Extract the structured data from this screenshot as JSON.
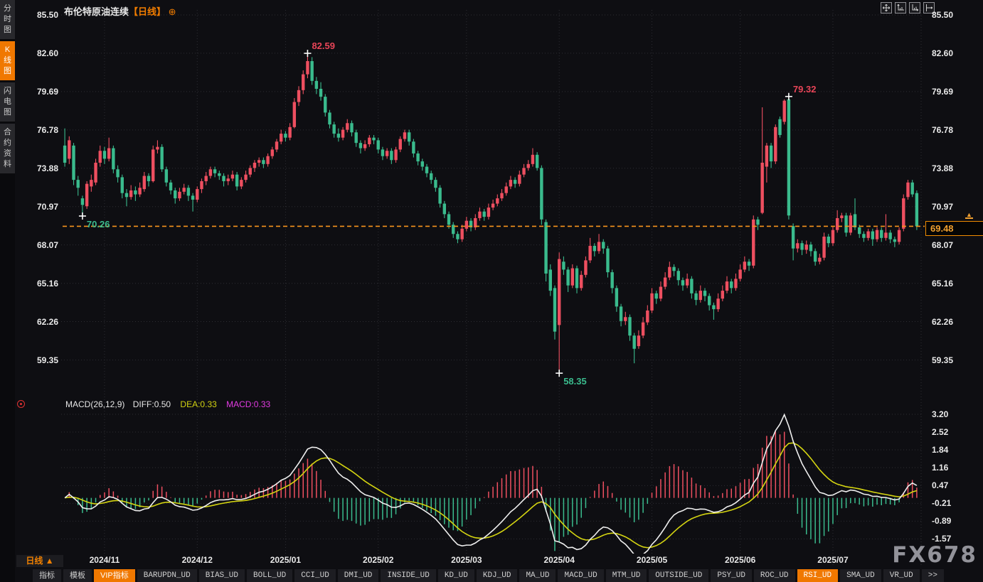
{
  "title": {
    "symbol": "布伦特原油连续",
    "period_tag": "【日线】",
    "plus": "⊕"
  },
  "topbar_icons": [
    "pan-tool-icon",
    "axis-scale-left-icon",
    "axis-scale-right-icon",
    "fit-right-icon"
  ],
  "sidebar": {
    "tabs": [
      {
        "label": "分时图",
        "active": false
      },
      {
        "label": "K线图",
        "active": true
      },
      {
        "label": "闪电图",
        "active": false
      },
      {
        "label": "合约资料",
        "active": false
      }
    ]
  },
  "main_chart": {
    "y_labels": [
      "85.50",
      "82.60",
      "79.69",
      "76.78",
      "73.88",
      "70.97",
      "68.07",
      "65.16",
      "62.26",
      "59.35"
    ],
    "last_price": "69.48",
    "annotations": [
      {
        "index": 55,
        "price": 82.59,
        "text": "82.59",
        "type": "high"
      },
      {
        "index": 4,
        "price": 70.26,
        "text": "70.26",
        "type": "low"
      },
      {
        "index": 164,
        "price": 79.32,
        "text": "79.32",
        "type": "high"
      },
      {
        "index": 112,
        "price": 58.35,
        "text": "58.35",
        "type": "low"
      }
    ]
  },
  "macd": {
    "header": {
      "name": "MACD(26,12,9)",
      "diff_label": "DIFF:0.50",
      "dea_label": "DEA:0.33",
      "macd_label": "MACD:0.33"
    },
    "y_labels": [
      "3.20",
      "2.52",
      "1.84",
      "1.16",
      "0.47",
      "-0.21",
      "-0.89",
      "-1.57"
    ]
  },
  "footer": {
    "period": "日线",
    "arrow": "▲",
    "tabs": [
      {
        "label": "指标",
        "cjk": true,
        "hl": false
      },
      {
        "label": "模板",
        "cjk": true,
        "hl": false
      },
      {
        "label": "VIP指标",
        "cjk": true,
        "hl": true
      },
      {
        "label": "BARUPDN_UD",
        "cjk": false,
        "hl": false
      },
      {
        "label": "BIAS_UD",
        "cjk": false,
        "hl": false
      },
      {
        "label": "BOLL_UD",
        "cjk": false,
        "hl": false
      },
      {
        "label": "CCI_UD",
        "cjk": false,
        "hl": false
      },
      {
        "label": "DMI_UD",
        "cjk": false,
        "hl": false
      },
      {
        "label": "INSIDE_UD",
        "cjk": false,
        "hl": false
      },
      {
        "label": "KD_UD",
        "cjk": false,
        "hl": false
      },
      {
        "label": "KDJ_UD",
        "cjk": false,
        "hl": false
      },
      {
        "label": "MA_UD",
        "cjk": false,
        "hl": false
      },
      {
        "label": "MACD_UD",
        "cjk": false,
        "hl": false
      },
      {
        "label": "MTM_UD",
        "cjk": false,
        "hl": false
      },
      {
        "label": "OUTSIDE_UD",
        "cjk": false,
        "hl": false
      },
      {
        "label": "PSY_UD",
        "cjk": false,
        "hl": false
      },
      {
        "label": "ROC_UD",
        "cjk": false,
        "hl": false
      },
      {
        "label": "RSI_UD",
        "cjk": false,
        "hl": true
      },
      {
        "label": "SMA_UD",
        "cjk": false,
        "hl": false
      },
      {
        "label": "VR_UD",
        "cjk": false,
        "hl": false
      },
      {
        "label": ">>",
        "cjk": false,
        "hl": false
      }
    ]
  },
  "watermark": "FX678",
  "colors": {
    "up": "#ee4f60",
    "down": "#3abb8d",
    "accent_orange": "#f7941d",
    "diff_line": "#eeeeee",
    "dea_line": "#d4d411",
    "macd_value": "#e23be2",
    "grid": "#2d2d33",
    "annotation_high": "#e84558",
    "annotation_low": "#3abb8d"
  },
  "chart_data": {
    "type": "candlestick",
    "title": "布伦特原油连续 日线 (Brent Crude Oil Continuous, Daily)",
    "indicator": "MACD(26,12,9)",
    "y_axis_prices": [
      85.5,
      82.6,
      79.69,
      76.78,
      73.88,
      70.97,
      68.07,
      65.16,
      62.26,
      59.35
    ],
    "macd_axis_values": [
      3.2,
      2.52,
      1.84,
      1.16,
      0.47,
      -0.21,
      -0.89,
      -1.57
    ],
    "x_ticks": [
      {
        "label": "2024/11",
        "index": 9
      },
      {
        "label": "2024/12",
        "index": 30
      },
      {
        "label": "2025/01",
        "index": 50
      },
      {
        "label": "2025/02",
        "index": 71
      },
      {
        "label": "2025/03",
        "index": 91
      },
      {
        "label": "2025/04",
        "index": 112
      },
      {
        "label": "2025/05",
        "index": 133
      },
      {
        "label": "2025/06",
        "index": 153
      },
      {
        "label": "2025/07",
        "index": 174
      }
    ],
    "ohlc": [
      [
        75.6,
        76.9,
        74.0,
        74.3
      ],
      [
        74.6,
        76.3,
        74.2,
        76.0
      ],
      [
        75.6,
        75.8,
        72.6,
        73.0
      ],
      [
        73.0,
        73.3,
        71.8,
        72.4
      ],
      [
        71.6,
        71.8,
        70.26,
        71.1
      ],
      [
        71.0,
        72.9,
        70.8,
        72.7
      ],
      [
        72.5,
        73.4,
        72.1,
        73.0
      ],
      [
        72.8,
        74.6,
        72.6,
        74.3
      ],
      [
        74.3,
        75.6,
        74.0,
        75.2
      ],
      [
        75.2,
        75.5,
        74.2,
        74.6
      ],
      [
        74.6,
        76.2,
        74.4,
        75.4
      ],
      [
        75.4,
        75.6,
        73.5,
        73.8
      ],
      [
        73.8,
        74.1,
        72.8,
        73.2
      ],
      [
        73.2,
        73.4,
        71.6,
        72.0
      ],
      [
        72.0,
        72.3,
        71.0,
        71.7
      ],
      [
        71.7,
        72.6,
        71.5,
        72.2
      ],
      [
        72.2,
        72.5,
        71.4,
        71.9
      ],
      [
        71.9,
        72.8,
        71.7,
        72.4
      ],
      [
        72.3,
        73.6,
        72.1,
        73.3
      ],
      [
        73.3,
        73.5,
        72.5,
        72.9
      ],
      [
        72.9,
        75.6,
        72.8,
        75.3
      ],
      [
        75.3,
        76.0,
        75.0,
        75.5
      ],
      [
        75.5,
        75.7,
        73.6,
        73.8
      ],
      [
        73.8,
        74.0,
        72.5,
        72.8
      ],
      [
        72.8,
        73.0,
        71.9,
        72.2
      ],
      [
        72.2,
        72.4,
        71.2,
        71.6
      ],
      [
        71.6,
        72.4,
        71.4,
        72.1
      ],
      [
        72.1,
        72.7,
        71.9,
        72.4
      ],
      [
        72.4,
        72.6,
        71.4,
        71.8
      ],
      [
        71.8,
        72.0,
        70.6,
        71.5
      ],
      [
        71.5,
        72.5,
        71.3,
        72.3
      ],
      [
        72.3,
        73.1,
        72.0,
        72.9
      ],
      [
        72.9,
        73.6,
        72.6,
        73.3
      ],
      [
        73.3,
        74.0,
        73.1,
        73.8
      ],
      [
        73.8,
        74.0,
        73.2,
        73.5
      ],
      [
        73.5,
        73.7,
        73.0,
        73.3
      ],
      [
        73.3,
        73.5,
        72.5,
        72.9
      ],
      [
        72.9,
        73.4,
        72.6,
        73.1
      ],
      [
        73.1,
        73.7,
        72.9,
        73.4
      ],
      [
        73.4,
        73.6,
        72.2,
        72.5
      ],
      [
        72.5,
        73.2,
        72.3,
        73.0
      ],
      [
        73.0,
        73.7,
        72.8,
        73.4
      ],
      [
        73.4,
        74.1,
        73.2,
        73.9
      ],
      [
        73.9,
        74.5,
        73.6,
        74.3
      ],
      [
        74.3,
        74.7,
        74.0,
        74.5
      ],
      [
        74.5,
        74.7,
        73.9,
        74.2
      ],
      [
        74.2,
        75.0,
        74.0,
        74.8
      ],
      [
        74.8,
        75.5,
        74.6,
        75.3
      ],
      [
        75.3,
        76.1,
        75.1,
        75.9
      ],
      [
        75.9,
        76.8,
        75.7,
        76.5
      ],
      [
        76.5,
        76.7,
        75.9,
        76.2
      ],
      [
        76.2,
        77.3,
        76.0,
        77.0
      ],
      [
        77.0,
        79.2,
        76.9,
        78.9
      ],
      [
        78.9,
        80.1,
        78.6,
        79.8
      ],
      [
        79.8,
        81.3,
        79.5,
        81.0
      ],
      [
        81.0,
        82.59,
        80.7,
        82.0
      ],
      [
        82.0,
        82.3,
        80.2,
        80.5
      ],
      [
        80.5,
        80.8,
        79.5,
        79.9
      ],
      [
        79.9,
        80.4,
        79.0,
        79.3
      ],
      [
        79.3,
        79.5,
        77.8,
        78.1
      ],
      [
        78.1,
        78.3,
        76.9,
        77.2
      ],
      [
        77.2,
        77.4,
        76.2,
        76.5
      ],
      [
        76.5,
        76.9,
        75.9,
        76.2
      ],
      [
        76.2,
        77.0,
        76.0,
        76.8
      ],
      [
        76.8,
        77.6,
        76.6,
        77.3
      ],
      [
        77.3,
        77.5,
        76.3,
        76.6
      ],
      [
        76.6,
        76.8,
        75.5,
        75.8
      ],
      [
        75.8,
        76.0,
        75.0,
        75.4
      ],
      [
        75.4,
        76.0,
        75.2,
        75.7
      ],
      [
        75.7,
        76.4,
        75.5,
        76.2
      ],
      [
        76.2,
        76.4,
        75.7,
        76.0
      ],
      [
        76.0,
        76.2,
        75.0,
        75.3
      ],
      [
        75.3,
        75.5,
        74.5,
        74.8
      ],
      [
        74.8,
        75.4,
        74.6,
        75.2
      ],
      [
        75.2,
        75.4,
        74.2,
        74.5
      ],
      [
        74.5,
        75.5,
        74.3,
        75.3
      ],
      [
        75.3,
        76.3,
        75.1,
        76.1
      ],
      [
        76.1,
        76.8,
        75.9,
        76.6
      ],
      [
        76.6,
        76.8,
        75.6,
        75.9
      ],
      [
        75.9,
        76.1,
        74.7,
        75.0
      ],
      [
        75.0,
        75.2,
        74.1,
        74.4
      ],
      [
        74.4,
        74.6,
        73.7,
        74.0
      ],
      [
        74.0,
        74.2,
        73.2,
        73.5
      ],
      [
        73.5,
        73.7,
        72.7,
        73.0
      ],
      [
        73.0,
        73.2,
        72.1,
        72.4
      ],
      [
        72.4,
        72.6,
        70.9,
        71.2
      ],
      [
        71.2,
        71.4,
        70.1,
        70.4
      ],
      [
        70.4,
        70.6,
        69.3,
        69.6
      ],
      [
        69.6,
        69.8,
        68.6,
        68.9
      ],
      [
        68.9,
        69.1,
        68.2,
        68.5
      ],
      [
        68.5,
        69.6,
        68.3,
        69.3
      ],
      [
        69.3,
        70.2,
        69.1,
        69.9
      ],
      [
        69.9,
        70.1,
        69.1,
        69.4
      ],
      [
        69.4,
        70.4,
        69.2,
        70.1
      ],
      [
        70.1,
        70.9,
        69.9,
        70.6
      ],
      [
        70.6,
        70.8,
        69.9,
        70.2
      ],
      [
        70.2,
        71.2,
        70.0,
        70.9
      ],
      [
        70.9,
        71.5,
        70.7,
        71.2
      ],
      [
        71.2,
        71.9,
        71.0,
        71.6
      ],
      [
        71.6,
        72.3,
        71.4,
        72.0
      ],
      [
        72.0,
        72.8,
        71.8,
        72.5
      ],
      [
        72.5,
        73.3,
        72.3,
        73.0
      ],
      [
        73.0,
        73.2,
        72.4,
        72.7
      ],
      [
        72.7,
        73.7,
        72.5,
        73.4
      ],
      [
        73.4,
        74.2,
        73.2,
        73.9
      ],
      [
        73.9,
        74.5,
        73.7,
        74.2
      ],
      [
        74.2,
        75.4,
        74.0,
        74.9
      ],
      [
        74.9,
        75.1,
        73.7,
        73.9
      ],
      [
        73.9,
        74.1,
        69.6,
        70.0
      ],
      [
        69.8,
        70.0,
        65.3,
        65.9
      ],
      [
        66.2,
        66.6,
        64.2,
        64.6
      ],
      [
        64.8,
        65.0,
        60.9,
        61.5
      ],
      [
        62.0,
        67.5,
        58.35,
        67.0
      ],
      [
        66.8,
        67.2,
        65.8,
        66.2
      ],
      [
        66.2,
        66.4,
        64.5,
        65.0
      ],
      [
        65.0,
        66.6,
        64.8,
        66.3
      ],
      [
        66.3,
        66.5,
        64.4,
        64.8
      ],
      [
        64.8,
        66.1,
        64.6,
        65.8
      ],
      [
        65.8,
        67.2,
        65.6,
        66.9
      ],
      [
        66.9,
        68.6,
        66.7,
        68.0
      ],
      [
        68.0,
        68.2,
        67.2,
        67.6
      ],
      [
        67.6,
        68.9,
        67.4,
        68.3
      ],
      [
        68.3,
        68.5,
        67.4,
        67.8
      ],
      [
        67.8,
        68.0,
        65.6,
        66.0
      ],
      [
        66.0,
        66.2,
        64.4,
        64.8
      ],
      [
        64.8,
        65.0,
        63.0,
        63.4
      ],
      [
        63.4,
        63.6,
        61.9,
        62.3
      ],
      [
        62.3,
        63.0,
        62.0,
        62.6
      ],
      [
        62.6,
        62.8,
        60.8,
        61.2
      ],
      [
        61.2,
        61.4,
        59.1,
        60.2
      ],
      [
        60.4,
        61.6,
        60.2,
        61.2
      ],
      [
        61.2,
        62.6,
        61.0,
        62.2
      ],
      [
        62.2,
        63.5,
        62.0,
        63.1
      ],
      [
        63.1,
        64.8,
        62.9,
        64.4
      ],
      [
        64.4,
        64.6,
        63.6,
        64.0
      ],
      [
        64.0,
        65.3,
        63.8,
        64.9
      ],
      [
        64.9,
        66.0,
        64.7,
        65.6
      ],
      [
        65.6,
        66.8,
        65.4,
        66.4
      ],
      [
        66.4,
        66.6,
        65.7,
        66.1
      ],
      [
        66.1,
        66.3,
        65.0,
        65.4
      ],
      [
        65.4,
        65.6,
        64.6,
        65.0
      ],
      [
        65.0,
        65.9,
        64.8,
        65.5
      ],
      [
        65.5,
        65.7,
        64.0,
        64.4
      ],
      [
        64.4,
        64.6,
        63.5,
        63.9
      ],
      [
        63.9,
        65.0,
        63.7,
        64.6
      ],
      [
        64.6,
        64.8,
        63.8,
        64.2
      ],
      [
        64.2,
        64.4,
        63.1,
        63.5
      ],
      [
        63.5,
        63.7,
        62.4,
        63.2
      ],
      [
        63.2,
        64.4,
        63.0,
        64.0
      ],
      [
        64.0,
        65.0,
        63.8,
        64.6
      ],
      [
        64.6,
        65.7,
        64.4,
        65.3
      ],
      [
        65.3,
        65.5,
        64.4,
        64.8
      ],
      [
        64.8,
        65.9,
        64.6,
        65.5
      ],
      [
        65.5,
        66.6,
        65.3,
        66.2
      ],
      [
        66.2,
        67.2,
        66.0,
        66.8
      ],
      [
        66.8,
        67.0,
        66.1,
        66.5
      ],
      [
        66.5,
        70.3,
        66.3,
        70.0
      ],
      [
        70.0,
        70.2,
        69.2,
        69.6
      ],
      [
        70.5,
        78.5,
        70.4,
        74.3
      ],
      [
        74.0,
        75.8,
        72.8,
        75.6
      ],
      [
        75.6,
        75.8,
        73.9,
        74.4
      ],
      [
        74.4,
        77.2,
        74.2,
        77.0
      ],
      [
        77.6,
        77.8,
        76.2,
        76.4
      ],
      [
        77.4,
        79.1,
        77.2,
        79.0
      ],
      [
        79.1,
        79.32,
        70.0,
        70.3
      ],
      [
        69.5,
        69.7,
        66.9,
        67.8
      ],
      [
        67.8,
        68.5,
        67.5,
        68.2
      ],
      [
        68.2,
        68.4,
        67.3,
        67.7
      ],
      [
        67.7,
        68.4,
        67.4,
        68.1
      ],
      [
        68.1,
        68.3,
        67.2,
        67.6
      ],
      [
        67.6,
        67.8,
        66.5,
        66.8
      ],
      [
        66.8,
        67.4,
        66.6,
        67.1
      ],
      [
        67.1,
        69.0,
        66.9,
        68.7
      ],
      [
        68.7,
        68.9,
        67.9,
        68.2
      ],
      [
        68.2,
        69.5,
        68.0,
        69.2
      ],
      [
        69.2,
        70.7,
        69.0,
        70.1
      ],
      [
        70.1,
        70.5,
        69.8,
        70.3
      ],
      [
        70.3,
        70.5,
        68.7,
        69.0
      ],
      [
        69.0,
        70.5,
        68.8,
        70.3
      ],
      [
        70.4,
        71.6,
        69.2,
        69.4
      ],
      [
        69.4,
        69.6,
        68.6,
        68.9
      ],
      [
        68.9,
        69.1,
        68.3,
        68.6
      ],
      [
        68.6,
        69.3,
        68.4,
        69.1
      ],
      [
        69.1,
        69.3,
        68.0,
        68.5
      ],
      [
        68.5,
        69.4,
        68.3,
        69.2
      ],
      [
        69.2,
        69.4,
        68.3,
        68.6
      ],
      [
        68.6,
        70.4,
        68.4,
        69.0
      ],
      [
        69.0,
        69.2,
        68.2,
        68.5
      ],
      [
        68.5,
        68.7,
        67.9,
        68.3
      ],
      [
        68.3,
        69.4,
        68.1,
        69.2
      ],
      [
        69.3,
        71.9,
        69.1,
        71.6
      ],
      [
        71.7,
        73.0,
        71.5,
        72.8
      ],
      [
        72.8,
        73.0,
        71.7,
        71.9
      ],
      [
        72.0,
        72.2,
        69.2,
        69.48
      ]
    ]
  }
}
